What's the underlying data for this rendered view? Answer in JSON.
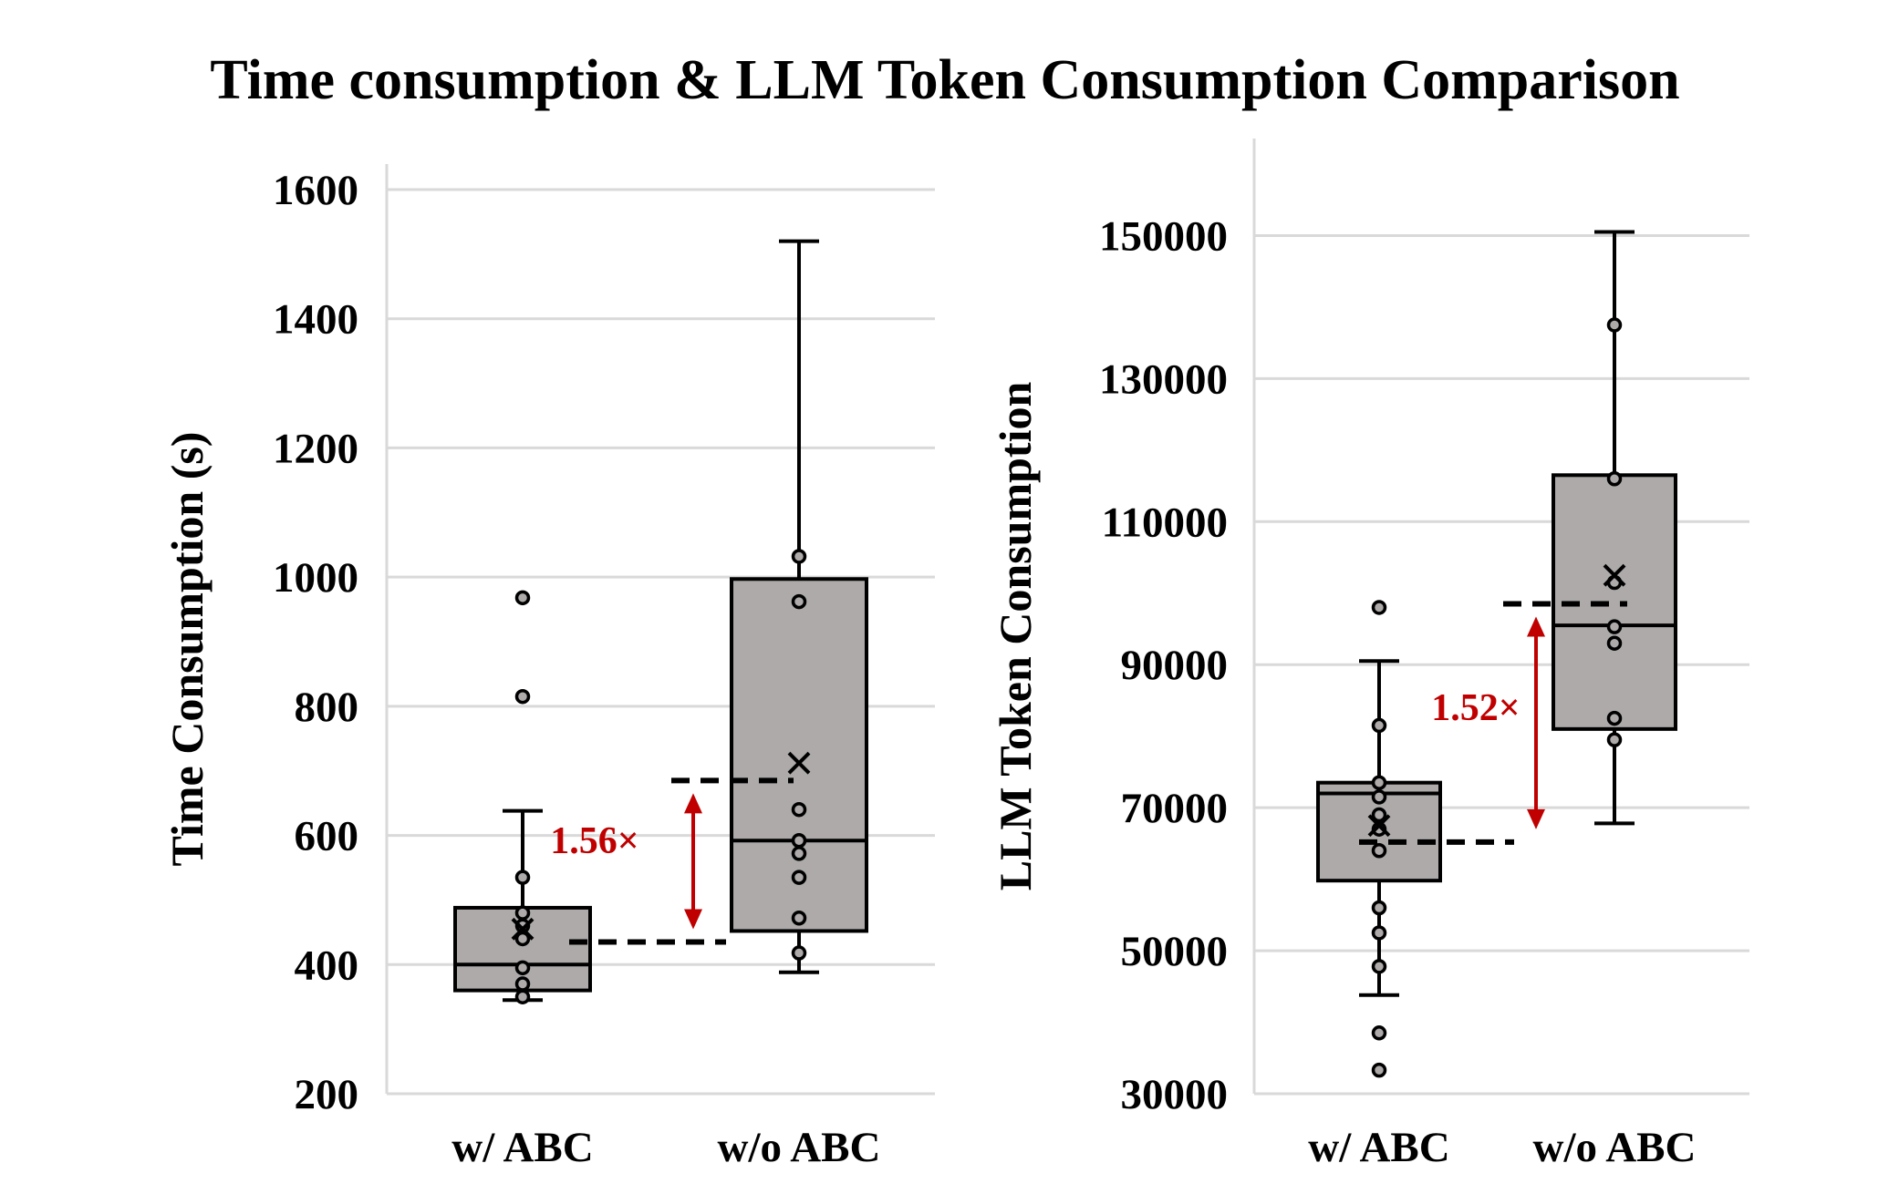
{
  "figure": {
    "title": "Time consumption & LLM Token Consumption Comparison"
  },
  "chart_data": [
    {
      "type": "box",
      "ylabel": "Time Consumption (s)",
      "xlabel": "",
      "ylim": [
        200,
        1600
      ],
      "yticks": [
        "200",
        "400",
        "600",
        "800",
        "1000",
        "1200",
        "1400",
        "1600"
      ],
      "yticks_values": [
        200,
        400,
        600,
        800,
        1000,
        1200,
        1400,
        1600
      ],
      "grid": true,
      "categories": [
        "w/ ABC",
        "w/o ABC"
      ],
      "boxes": [
        {
          "category": "w/ ABC",
          "whisker_low": 345,
          "q1": 360,
          "median": 400,
          "q3": 488,
          "whisker_high": 638,
          "mean": 455,
          "points": [
            350,
            370,
            395,
            440,
            460,
            480,
            535,
            815,
            968
          ]
        },
        {
          "category": "w/o ABC",
          "whisker_low": 388,
          "q1": 452,
          "median": 592,
          "q3": 997,
          "whisker_high": 1520,
          "mean": 712,
          "points": [
            418,
            472,
            535,
            572,
            592,
            640,
            962,
            1032
          ]
        }
      ],
      "comparison": {
        "label": "1.56×",
        "from": 435,
        "to": 685
      }
    },
    {
      "type": "box",
      "ylabel": "LLM Token Consumption",
      "xlabel": "",
      "ylim": [
        30000,
        160000
      ],
      "yticks": [
        "30000",
        "50000",
        "70000",
        "90000",
        "110000",
        "130000",
        "150000"
      ],
      "yticks_values": [
        30000,
        50000,
        70000,
        90000,
        110000,
        130000,
        150000
      ],
      "grid": true,
      "categories": [
        "w/ ABC",
        "w/o ABC"
      ],
      "boxes": [
        {
          "category": "w/ ABC",
          "whisker_low": 43800,
          "q1": 59800,
          "median": 72000,
          "q3": 73500,
          "whisker_high": 90500,
          "mean": 67500,
          "points": [
            33300,
            38500,
            47800,
            52500,
            56000,
            64000,
            67000,
            69000,
            71500,
            73500,
            81500,
            98000
          ]
        },
        {
          "category": "w/o ABC",
          "whisker_low": 67800,
          "q1": 81000,
          "median": 95500,
          "q3": 116500,
          "whisker_high": 150500,
          "mean": 102500,
          "points": [
            79500,
            82500,
            93000,
            95300,
            101500,
            116000,
            137500
          ]
        }
      ],
      "comparison": {
        "label": "1.52×",
        "from": 65200,
        "to": 98500
      }
    }
  ]
}
